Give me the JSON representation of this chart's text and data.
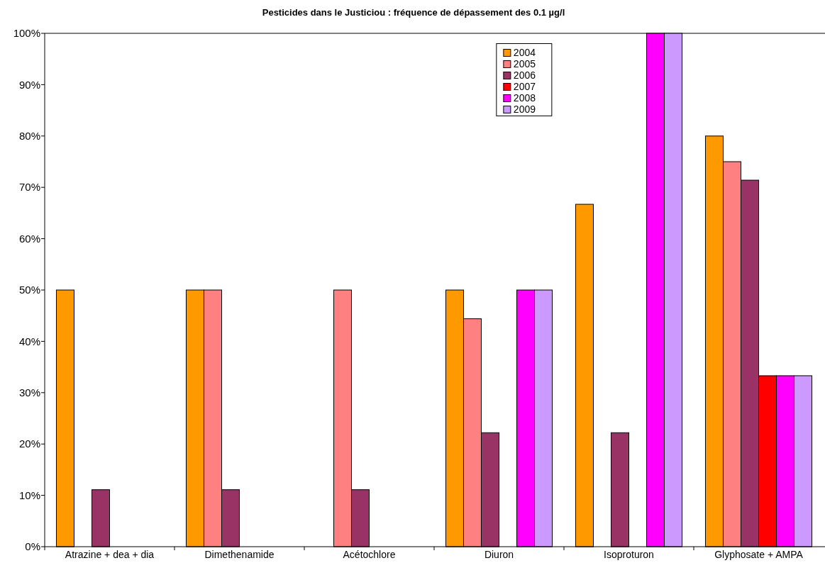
{
  "chart_data": {
    "type": "bar",
    "title": "Pesticides dans le Justiciou : fréquence de dépassement des 0.1 µg/l",
    "categories": [
      "Atrazine + dea + dia",
      "Dimethenamide",
      "Acétochlore",
      "Diuron",
      "Isoproturon",
      "Glyphosate + AMPA"
    ],
    "series": [
      {
        "name": "2004",
        "color": "#ff9900",
        "values": [
          50,
          50,
          null,
          50,
          66.7,
          80
        ]
      },
      {
        "name": "2005",
        "color": "#ff8080",
        "values": [
          null,
          50,
          50,
          44.4,
          null,
          75
        ]
      },
      {
        "name": "2006",
        "color": "#993366",
        "values": [
          11.1,
          11.1,
          11.1,
          22.2,
          22.2,
          71.4
        ]
      },
      {
        "name": "2007",
        "color": "#ff0000",
        "values": [
          null,
          null,
          null,
          null,
          null,
          33.3
        ]
      },
      {
        "name": "2008",
        "color": "#ff00ff",
        "values": [
          null,
          null,
          null,
          50,
          100,
          33.3
        ]
      },
      {
        "name": "2009",
        "color": "#cc99ff",
        "values": [
          null,
          null,
          null,
          50,
          100,
          33.3
        ]
      }
    ],
    "ylim": [
      0,
      100
    ],
    "yticks": [
      {
        "value": 0,
        "label": "0%"
      },
      {
        "value": 10,
        "label": "10%"
      },
      {
        "value": 20,
        "label": "20%"
      },
      {
        "value": 30,
        "label": "30%"
      },
      {
        "value": 40,
        "label": "40%"
      },
      {
        "value": 50,
        "label": "50%"
      },
      {
        "value": 60,
        "label": "60%"
      },
      {
        "value": 70,
        "label": "70%"
      },
      {
        "value": 80,
        "label": "80%"
      },
      {
        "value": 90,
        "label": "90%"
      },
      {
        "value": 100,
        "label": "100%"
      }
    ],
    "grid": false,
    "legend": "top"
  }
}
